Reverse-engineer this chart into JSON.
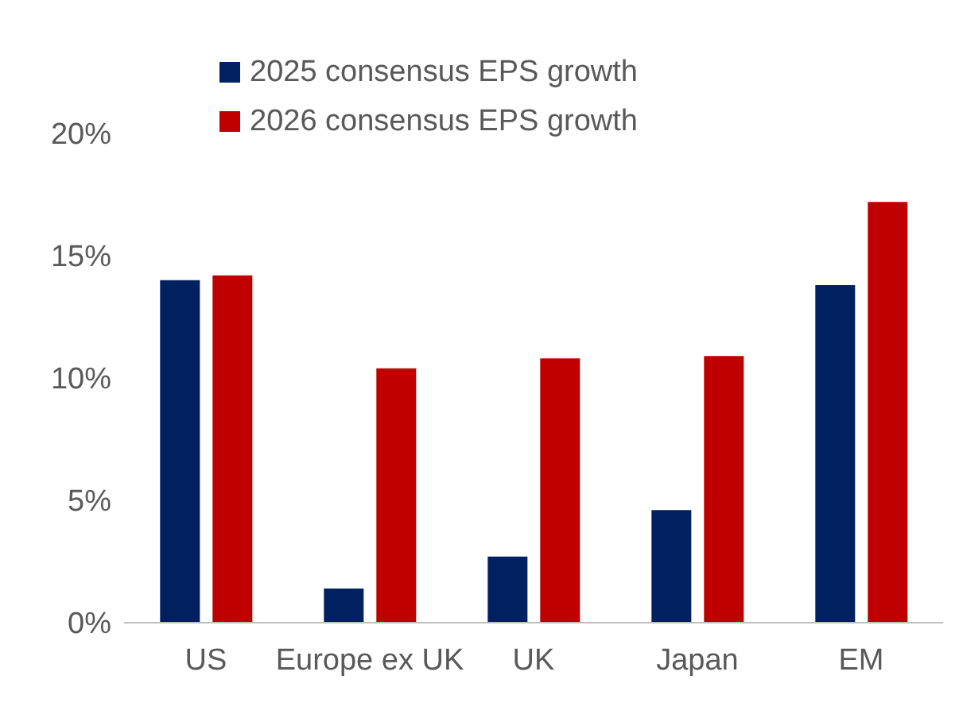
{
  "chart_data": {
    "type": "bar",
    "categories": [
      "US",
      "Europe ex UK",
      "UK",
      "Japan",
      "EM"
    ],
    "series": [
      {
        "name": "2025 consensus EPS growth",
        "color": "#002060",
        "values": [
          14.0,
          1.4,
          2.7,
          4.6,
          13.8
        ]
      },
      {
        "name": "2026 consensus EPS growth",
        "color": "#c00000",
        "values": [
          14.2,
          10.4,
          10.8,
          10.9,
          17.2
        ]
      }
    ],
    "ylim": [
      0,
      20
    ],
    "yticks": [
      {
        "value": 0,
        "label": "0%"
      },
      {
        "value": 5,
        "label": "5%"
      },
      {
        "value": 10,
        "label": "10%"
      },
      {
        "value": 15,
        "label": "15%"
      },
      {
        "value": 20,
        "label": "20%"
      }
    ],
    "grid": false,
    "legend": "top"
  }
}
